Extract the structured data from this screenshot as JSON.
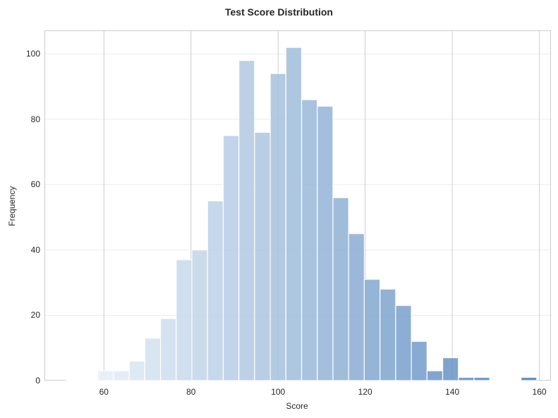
{
  "chart_data": {
    "type": "bar",
    "subtype": "histogram",
    "title": "Test Score Distribution",
    "xlabel": "Score",
    "ylabel": "Frequency",
    "xlim": [
      46.5,
      162.5
    ],
    "ylim": [
      0,
      107
    ],
    "xticks": [
      60,
      80,
      100,
      120,
      140,
      160
    ],
    "yticks": [
      0,
      20,
      40,
      60,
      80,
      100
    ],
    "grid": true,
    "legend": null,
    "bin_width": 3.6,
    "bins": [
      {
        "x0": 51.4,
        "x1": 55.0,
        "count": 0
      },
      {
        "x0": 55.0,
        "x1": 58.6,
        "count": 0
      },
      {
        "x0": 58.6,
        "x1": 62.2,
        "count": 3
      },
      {
        "x0": 62.2,
        "x1": 65.8,
        "count": 3
      },
      {
        "x0": 65.8,
        "x1": 69.4,
        "count": 6
      },
      {
        "x0": 69.4,
        "x1": 73.0,
        "count": 13
      },
      {
        "x0": 73.0,
        "x1": 76.6,
        "count": 19
      },
      {
        "x0": 76.6,
        "x1": 80.2,
        "count": 37
      },
      {
        "x0": 80.2,
        "x1": 83.8,
        "count": 40
      },
      {
        "x0": 83.8,
        "x1": 87.4,
        "count": 55
      },
      {
        "x0": 87.4,
        "x1": 91.0,
        "count": 75
      },
      {
        "x0": 91.0,
        "x1": 94.6,
        "count": 98
      },
      {
        "x0": 94.6,
        "x1": 98.2,
        "count": 76
      },
      {
        "x0": 98.2,
        "x1": 101.8,
        "count": 94
      },
      {
        "x0": 101.8,
        "x1": 105.4,
        "count": 102
      },
      {
        "x0": 105.4,
        "x1": 109.0,
        "count": 86
      },
      {
        "x0": 109.0,
        "x1": 112.6,
        "count": 84
      },
      {
        "x0": 112.6,
        "x1": 116.2,
        "count": 56
      },
      {
        "x0": 116.2,
        "x1": 119.8,
        "count": 45
      },
      {
        "x0": 119.8,
        "x1": 123.4,
        "count": 31
      },
      {
        "x0": 123.4,
        "x1": 127.0,
        "count": 28
      },
      {
        "x0": 127.0,
        "x1": 130.6,
        "count": 23
      },
      {
        "x0": 130.6,
        "x1": 134.2,
        "count": 12
      },
      {
        "x0": 134.2,
        "x1": 137.8,
        "count": 3
      },
      {
        "x0": 137.8,
        "x1": 141.4,
        "count": 7
      },
      {
        "x0": 141.4,
        "x1": 145.0,
        "count": 1
      },
      {
        "x0": 145.0,
        "x1": 148.6,
        "count": 1
      },
      {
        "x0": 148.6,
        "x1": 152.2,
        "count": 0
      },
      {
        "x0": 152.2,
        "x1": 155.8,
        "count": 0
      },
      {
        "x0": 155.8,
        "x1": 159.4,
        "count": 1
      }
    ],
    "colormap": {
      "start": "#f0f5fb",
      "end": "#4a80ba"
    }
  }
}
